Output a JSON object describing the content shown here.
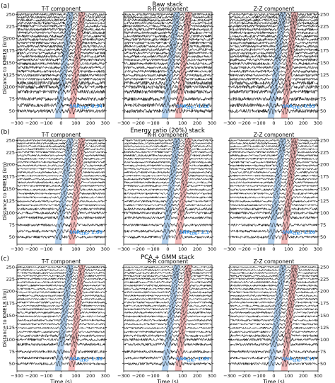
{
  "figure": {
    "rows": [
      {
        "letter": "(a)",
        "title": "Raw stack",
        "panels": [
          {
            "label": "T-T component",
            "snr_prefix": "SNR",
            "snr_sub": "(ZR)",
            "snr_value": "0.94"
          },
          {
            "label": "R-R component",
            "snr_prefix": "SNR",
            "snr_sub": "(ZR)",
            "snr_value": "1.22"
          },
          {
            "label": "Z-Z component",
            "snr_prefix": "SNR",
            "snr_sub": "(ZR)",
            "snr_value": "0.93"
          }
        ]
      },
      {
        "letter": "(b)",
        "title": "Energy ratio (20%) stack",
        "panels": [
          {
            "label": "T-T component",
            "snr_prefix": "SNR",
            "snr_sub": "(ZR)",
            "snr_value": "1.88"
          },
          {
            "label": "R-R component",
            "snr_prefix": "SNR",
            "snr_sub": "(ZR)",
            "snr_value": "2.1"
          },
          {
            "label": "Z-Z component",
            "snr_prefix": "SNR",
            "snr_sub": "(ZR)",
            "snr_value": "2.26"
          }
        ]
      },
      {
        "letter": "(c)",
        "title": "PCA + GMM stack",
        "panels": [
          {
            "label": "T-T component",
            "snr_prefix": "SNR",
            "snr_sub": "(ZR)",
            "snr_value": "1.88"
          },
          {
            "label": "R-R component",
            "snr_prefix": "SNR",
            "snr_sub": "(ZR)",
            "snr_value": "1.89"
          },
          {
            "label": "Z-Z component",
            "snr_prefix": "SNR",
            "snr_sub": "(ZR)",
            "snr_value": "3.17"
          }
        ]
      }
    ],
    "ylabel": "Distance to KME18 (km)",
    "xlabel": "Time (s)",
    "colors": {
      "trace": "#000000",
      "blue_window": "#9cc3ea",
      "red_window": "#f2a5a5",
      "snr_text": "#2f8de4"
    }
  },
  "chart_data": {
    "type": "line",
    "x_axis": {
      "range": [
        -300,
        300
      ],
      "ticks": [
        -300,
        -200,
        -100,
        0,
        100,
        200,
        300
      ]
    },
    "y_axis": {
      "range": [
        35,
        255
      ],
      "ticks": [
        50,
        75,
        100,
        125,
        150,
        175,
        200,
        225,
        250
      ]
    },
    "trace_distances_km": [
      50,
      62,
      75,
      90,
      100,
      108,
      116,
      124,
      132,
      140,
      148,
      156,
      163,
      170,
      177,
      184,
      191,
      198,
      205,
      212,
      219,
      226,
      232,
      238,
      244,
      250
    ],
    "blue_window": {
      "center_distance_km": [
        50,
        250
      ],
      "center_time_s": [
        -15,
        60
      ],
      "half_width_s": 22
    },
    "red_window": {
      "center_distance_km": [
        50,
        250
      ],
      "center_time_s": [
        75,
        140
      ],
      "half_width_s": 22
    },
    "snr_values": [
      [
        0.94,
        1.22,
        0.93
      ],
      [
        1.88,
        2.1,
        2.26
      ],
      [
        1.88,
        1.89,
        3.17
      ]
    ]
  }
}
